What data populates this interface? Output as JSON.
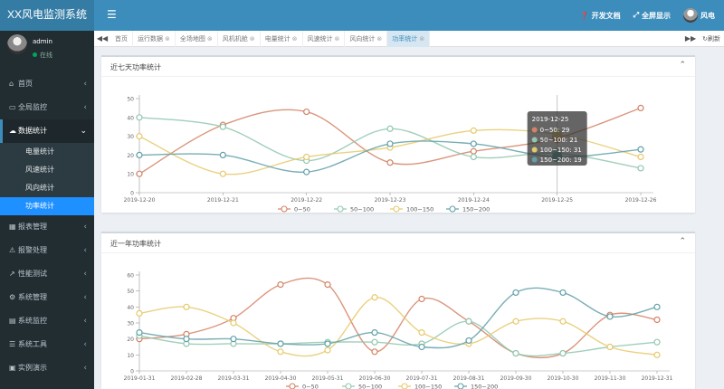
{
  "app": {
    "title": "XX风电监测系统"
  },
  "user": {
    "name": "admin",
    "status": "在线"
  },
  "menu": [
    {
      "label": "首页",
      "icon": "home-icon",
      "glyph": "⌂"
    },
    {
      "label": "全局监控",
      "icon": "monitor-icon",
      "glyph": "▭"
    }
  ],
  "data_menu": {
    "label": "数据统计",
    "icon": "cloud-icon",
    "glyph": "☁",
    "items": [
      "电量统计",
      "风速统计",
      "风向统计",
      "功率统计"
    ]
  },
  "menu_after": [
    {
      "label": "报表管理",
      "icon": "report-icon",
      "glyph": "▦"
    },
    {
      "label": "报警处理",
      "icon": "alarm-icon",
      "glyph": "⚠"
    },
    {
      "label": "性能测试",
      "icon": "chart-icon",
      "glyph": "↗"
    },
    {
      "label": "系统管理",
      "icon": "gear-icon",
      "glyph": "⚙"
    },
    {
      "label": "系统监控",
      "icon": "server-icon",
      "glyph": "▤"
    },
    {
      "label": "系统工具",
      "icon": "tools-icon",
      "glyph": "☰"
    },
    {
      "label": "实例演示",
      "icon": "demo-icon",
      "glyph": "▣"
    }
  ],
  "topbar": {
    "docs": "开发文档",
    "fullscreen": "全屏显示",
    "username": "风电"
  },
  "tabs": [
    {
      "label": "首页",
      "closable": false,
      "active": false
    },
    {
      "label": "运行数据",
      "closable": true,
      "active": false
    },
    {
      "label": "全场地图",
      "closable": true,
      "active": false
    },
    {
      "label": "风机机舱",
      "closable": true,
      "active": false
    },
    {
      "label": "电量统计",
      "closable": true,
      "active": false
    },
    {
      "label": "风速统计",
      "closable": true,
      "active": false
    },
    {
      "label": "风向统计",
      "closable": true,
      "active": false
    },
    {
      "label": "功率统计",
      "closable": true,
      "active": true
    }
  ],
  "tabbar": {
    "prev": "◀◀",
    "next": "▶▶",
    "refresh": "刷新"
  },
  "box1": {
    "title": "近七天功率统计"
  },
  "box2": {
    "title": "近一年功率统计"
  },
  "chart_data": [
    {
      "type": "line",
      "smooth": true,
      "x": [
        "2019-12-20",
        "2019-12-21",
        "2019-12-22",
        "2019-12-23",
        "2019-12-24",
        "2019-12-25",
        "2019-12-26"
      ],
      "ylim": [
        0,
        50
      ],
      "yticks": [
        0,
        10,
        20,
        30,
        40,
        50
      ],
      "series": [
        {
          "name": "0~50",
          "color": "#d48265",
          "values": [
            10,
            36,
            43,
            16,
            22,
            29,
            45
          ]
        },
        {
          "name": "50~100",
          "color": "#91c7ae",
          "values": [
            40,
            35,
            17,
            34,
            19,
            21,
            13
          ]
        },
        {
          "name": "100~150",
          "color": "#e6c96b",
          "values": [
            30,
            10,
            19,
            24,
            33,
            31,
            19
          ]
        },
        {
          "name": "150~200",
          "color": "#61a0a8",
          "values": [
            20,
            20,
            11,
            26,
            26,
            19,
            23
          ]
        }
      ],
      "tooltip": {
        "index": 5,
        "title": "2019-12-25",
        "rows": [
          "0~50: 29",
          "50~100: 21",
          "100~150: 31",
          "150~200: 19"
        ]
      }
    },
    {
      "type": "line",
      "smooth": true,
      "x": [
        "2019-01-31",
        "2019-02-28",
        "2019-03-31",
        "2019-04-30",
        "2019-05-31",
        "2019-06-30",
        "2019-07-31",
        "2019-08-31",
        "2019-09-30",
        "2019-10-30",
        "2019-11-30",
        "2019-12-31"
      ],
      "ylim": [
        0,
        60
      ],
      "yticks": [
        0,
        10,
        20,
        30,
        40,
        50,
        60
      ],
      "series": [
        {
          "name": "0~50",
          "color": "#d48265",
          "values": [
            20,
            23,
            33,
            54,
            54,
            12,
            45,
            31,
            11,
            11,
            35,
            32
          ]
        },
        {
          "name": "50~100",
          "color": "#91c7ae",
          "values": [
            22,
            17,
            17,
            17,
            18,
            18,
            17,
            31,
            11,
            11,
            15,
            18
          ]
        },
        {
          "name": "100~150",
          "color": "#e6c96b",
          "values": [
            36,
            40,
            30,
            12,
            13,
            46,
            24,
            17,
            31,
            31,
            15,
            10
          ]
        },
        {
          "name": "150~200",
          "color": "#61a0a8",
          "values": [
            24,
            20,
            20,
            17,
            17,
            24,
            15,
            19,
            49,
            49,
            34,
            40
          ]
        }
      ]
    }
  ]
}
